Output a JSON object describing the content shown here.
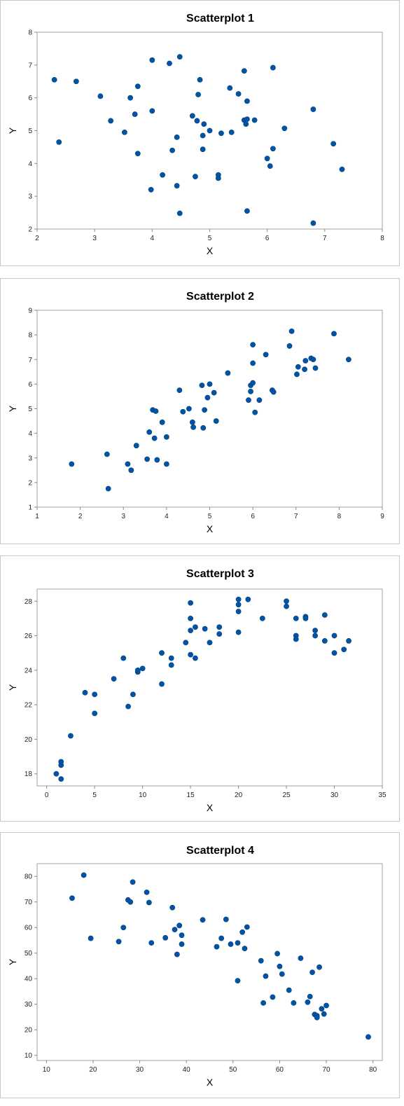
{
  "colors": {
    "point": "#0054a6",
    "frame": "#a0a0a0",
    "panel_border": "#c8c8c8"
  },
  "chart_data": [
    {
      "type": "scatter",
      "title": "Scatterplot 1",
      "xlabel": "X",
      "ylabel": "Y",
      "xlim": [
        2,
        8
      ],
      "ylim": [
        2,
        8
      ],
      "xticks": [
        2,
        3,
        4,
        5,
        6,
        7,
        8
      ],
      "yticks": [
        2,
        3,
        4,
        5,
        6,
        7,
        8
      ],
      "grid": false,
      "series": [
        {
          "x": [
            2.3,
            2.38,
            2.68,
            3.1,
            3.28,
            3.52,
            3.62,
            3.7,
            3.75,
            3.75,
            3.98,
            4.0,
            4.0,
            4.18,
            4.3,
            4.35,
            4.43,
            4.43,
            4.48,
            4.48,
            4.7,
            4.75,
            4.78,
            4.8,
            4.83,
            4.88,
            4.88,
            4.9,
            5.0,
            5.15,
            5.15,
            5.2,
            5.35,
            5.38,
            5.5,
            5.6,
            5.6,
            5.63,
            5.65,
            5.65,
            5.65,
            5.78,
            6.0,
            6.05,
            6.1,
            6.1,
            6.3,
            6.8,
            6.8,
            7.15,
            7.3
          ],
          "y": [
            6.55,
            4.65,
            6.5,
            6.05,
            5.3,
            4.95,
            6.0,
            5.5,
            6.35,
            4.3,
            3.2,
            7.15,
            5.6,
            3.65,
            7.05,
            4.4,
            4.8,
            3.32,
            7.25,
            2.48,
            5.45,
            3.6,
            5.3,
            6.1,
            6.55,
            4.85,
            4.43,
            5.2,
            5.0,
            3.65,
            3.55,
            4.92,
            6.3,
            4.95,
            6.12,
            6.82,
            5.32,
            5.2,
            5.35,
            5.9,
            2.55,
            5.32,
            4.15,
            3.92,
            4.45,
            6.92,
            5.07,
            5.65,
            2.18,
            4.6,
            3.82
          ]
        }
      ]
    },
    {
      "type": "scatter",
      "title": "Scatterplot 2",
      "xlabel": "X",
      "ylabel": "Y",
      "xlim": [
        1,
        9
      ],
      "ylim": [
        1,
        9
      ],
      "xticks": [
        1,
        2,
        3,
        4,
        5,
        6,
        7,
        8,
        9
      ],
      "yticks": [
        1,
        2,
        3,
        4,
        5,
        6,
        7,
        8,
        9
      ],
      "grid": false,
      "series": [
        {
          "x": [
            1.8,
            2.62,
            2.65,
            3.1,
            3.18,
            3.3,
            3.55,
            3.6,
            3.68,
            3.72,
            3.75,
            3.78,
            3.9,
            4.0,
            4.0,
            4.3,
            4.38,
            4.52,
            4.6,
            4.62,
            4.82,
            4.85,
            4.88,
            4.95,
            5.0,
            5.1,
            5.15,
            5.42,
            5.9,
            5.95,
            5.95,
            6.0,
            6.0,
            6.0,
            6.05,
            6.15,
            6.3,
            6.45,
            6.48,
            6.85,
            6.9,
            7.02,
            7.05,
            7.2,
            7.22,
            7.35,
            7.4,
            7.45,
            7.88,
            8.22
          ],
          "y": [
            2.75,
            3.15,
            1.75,
            2.75,
            2.5,
            3.5,
            2.95,
            4.05,
            4.95,
            3.8,
            4.9,
            2.92,
            4.45,
            2.75,
            3.85,
            5.75,
            4.88,
            5.0,
            4.45,
            4.25,
            5.95,
            4.22,
            4.95,
            5.45,
            6.0,
            5.65,
            4.5,
            6.45,
            5.35,
            5.7,
            5.95,
            6.05,
            6.85,
            7.6,
            4.85,
            5.35,
            7.2,
            5.75,
            5.68,
            7.55,
            8.15,
            6.4,
            6.7,
            6.6,
            6.95,
            7.05,
            7.0,
            6.65,
            8.05,
            7.0
          ]
        }
      ]
    },
    {
      "type": "scatter",
      "title": "Scatterplot 3",
      "xlabel": "X",
      "ylabel": "Y",
      "xlim": [
        -1,
        35
      ],
      "ylim": [
        17.3,
        28.7
      ],
      "xticks": [
        0,
        5,
        10,
        15,
        20,
        25,
        30,
        35
      ],
      "yticks": [
        18,
        20,
        22,
        24,
        26,
        28
      ],
      "grid": false,
      "series": [
        {
          "x": [
            1,
            1.5,
            1.5,
            1.5,
            2.5,
            4,
            5,
            5,
            7,
            8,
            8.5,
            9,
            9.5,
            9.5,
            10,
            12,
            12,
            13,
            13,
            14.5,
            15,
            15,
            15,
            15,
            15.5,
            15.5,
            16.5,
            17,
            18,
            18,
            20,
            20,
            20,
            20,
            21,
            22.5,
            25,
            25,
            26,
            26,
            26,
            27,
            27,
            28,
            28,
            29,
            29,
            30,
            30,
            31,
            31.5
          ],
          "y": [
            18.0,
            17.7,
            18.5,
            18.7,
            20.2,
            22.7,
            21.5,
            22.6,
            23.5,
            24.7,
            21.9,
            22.6,
            23.9,
            24.0,
            24.1,
            25.0,
            23.2,
            24.3,
            24.7,
            25.6,
            27.9,
            27.0,
            26.3,
            24.9,
            24.7,
            26.5,
            26.4,
            25.6,
            26.1,
            26.5,
            28.1,
            27.8,
            27.4,
            26.2,
            28.1,
            27.0,
            28.0,
            27.7,
            27.0,
            26.0,
            25.8,
            27.1,
            27.0,
            26.3,
            26.0,
            27.2,
            25.7,
            26.0,
            25.0,
            25.2,
            25.7
          ]
        }
      ]
    },
    {
      "type": "scatter",
      "title": "Scatterplot 4",
      "xlabel": "X",
      "ylabel": "Y",
      "xlim": [
        8,
        82
      ],
      "ylim": [
        8,
        85
      ],
      "xticks": [
        10,
        20,
        30,
        40,
        50,
        60,
        70,
        80
      ],
      "yticks": [
        10,
        20,
        30,
        40,
        50,
        60,
        70,
        80
      ],
      "grid": false,
      "series": [
        {
          "x": [
            15.5,
            18,
            19.5,
            25.5,
            26.5,
            27.5,
            28,
            28.5,
            31.5,
            32,
            32.5,
            35.5,
            37,
            37.5,
            38,
            38.5,
            39,
            39,
            43.5,
            46.5,
            47.5,
            48.5,
            49.5,
            51,
            51,
            52,
            52.5,
            53,
            56,
            56.5,
            57,
            58.5,
            59.5,
            60,
            60.5,
            62,
            63,
            64.5,
            66,
            66.5,
            67,
            67.5,
            68,
            68,
            68.5,
            69,
            69.5,
            70,
            79
          ],
          "y": [
            71.5,
            80.5,
            55.8,
            54.5,
            60.0,
            70.8,
            70.0,
            77.8,
            73.8,
            69.8,
            54.0,
            56.0,
            67.8,
            59.2,
            49.5,
            60.8,
            57.0,
            53.5,
            63.0,
            52.5,
            55.8,
            63.2,
            53.5,
            54.0,
            39.2,
            58.2,
            51.8,
            60.2,
            47.0,
            30.5,
            41.0,
            32.8,
            49.8,
            44.8,
            41.8,
            35.5,
            30.5,
            48.0,
            30.8,
            33.0,
            42.5,
            26.0,
            25.5,
            24.8,
            44.5,
            28.2,
            26.2,
            29.5,
            17.2
          ]
        }
      ]
    }
  ]
}
